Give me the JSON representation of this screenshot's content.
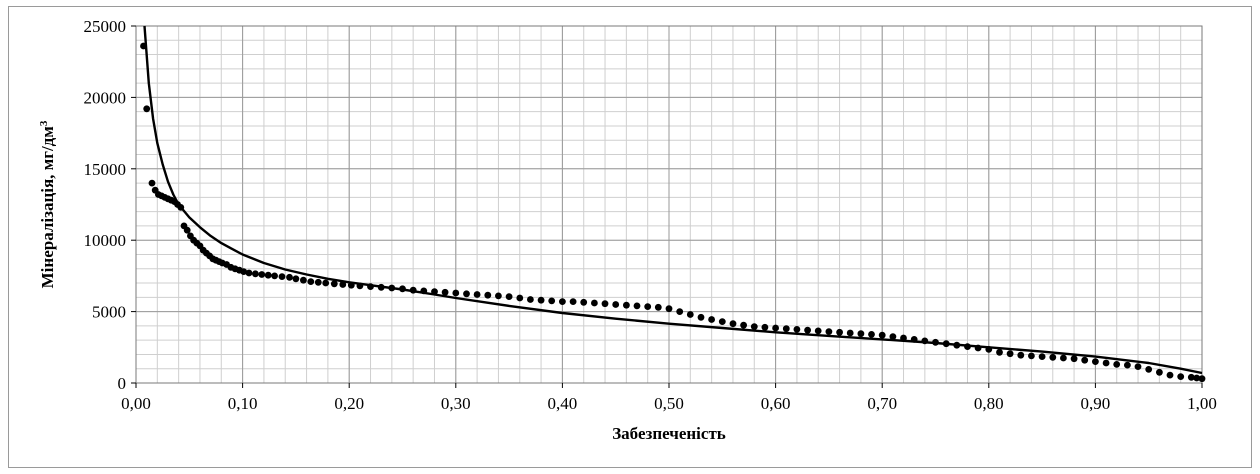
{
  "chart_data": {
    "type": "scatter",
    "title": "",
    "xlabel": "Забезпеченість",
    "ylabel": "Мінералізація, мг/дм",
    "ylabel_sup": "3",
    "xlim": [
      0,
      1
    ],
    "ylim": [
      0,
      25000
    ],
    "x_ticks": [
      {
        "v": 0.0,
        "label": "0,00"
      },
      {
        "v": 0.1,
        "label": "0,10"
      },
      {
        "v": 0.2,
        "label": "0,20"
      },
      {
        "v": 0.3,
        "label": "0,30"
      },
      {
        "v": 0.4,
        "label": "0,40"
      },
      {
        "v": 0.5,
        "label": "0,50"
      },
      {
        "v": 0.6,
        "label": "0,60"
      },
      {
        "v": 0.7,
        "label": "0,70"
      },
      {
        "v": 0.8,
        "label": "0,80"
      },
      {
        "v": 0.9,
        "label": "0,90"
      },
      {
        "v": 1.0,
        "label": "1,00"
      }
    ],
    "y_ticks": [
      {
        "v": 0,
        "label": "0"
      },
      {
        "v": 5000,
        "label": "5000"
      },
      {
        "v": 10000,
        "label": "10000"
      },
      {
        "v": 15000,
        "label": "15000"
      },
      {
        "v": 20000,
        "label": "20000"
      },
      {
        "v": 25000,
        "label": "25000"
      }
    ],
    "grid": true,
    "grid_minor": {
      "x_step": 0.02,
      "y_step": 1000
    },
    "colors": {
      "series": "#000000",
      "grid": "#bdbdbd"
    },
    "series": [
      {
        "kind": "points",
        "points": [
          [
            0.007,
            23600
          ],
          [
            0.01,
            19200
          ],
          [
            0.015,
            14000
          ],
          [
            0.018,
            13500
          ],
          [
            0.021,
            13200
          ],
          [
            0.024,
            13100
          ],
          [
            0.027,
            13000
          ],
          [
            0.03,
            12900
          ],
          [
            0.033,
            12800
          ],
          [
            0.036,
            12700
          ],
          [
            0.039,
            12500
          ],
          [
            0.042,
            12300
          ],
          [
            0.045,
            11000
          ],
          [
            0.048,
            10700
          ],
          [
            0.051,
            10300
          ],
          [
            0.054,
            10000
          ],
          [
            0.057,
            9800
          ],
          [
            0.06,
            9600
          ],
          [
            0.063,
            9300
          ],
          [
            0.066,
            9100
          ],
          [
            0.069,
            8900
          ],
          [
            0.072,
            8700
          ],
          [
            0.075,
            8600
          ],
          [
            0.078,
            8500
          ],
          [
            0.081,
            8400
          ],
          [
            0.085,
            8300
          ],
          [
            0.089,
            8100
          ],
          [
            0.093,
            8000
          ],
          [
            0.097,
            7900
          ],
          [
            0.101,
            7800
          ],
          [
            0.106,
            7700
          ],
          [
            0.112,
            7650
          ],
          [
            0.118,
            7600
          ],
          [
            0.124,
            7550
          ],
          [
            0.13,
            7500
          ],
          [
            0.137,
            7450
          ],
          [
            0.144,
            7400
          ],
          [
            0.15,
            7300
          ],
          [
            0.157,
            7200
          ],
          [
            0.164,
            7100
          ],
          [
            0.171,
            7050
          ],
          [
            0.178,
            7000
          ],
          [
            0.186,
            6950
          ],
          [
            0.194,
            6900
          ],
          [
            0.202,
            6850
          ],
          [
            0.21,
            6800
          ],
          [
            0.22,
            6750
          ],
          [
            0.23,
            6700
          ],
          [
            0.24,
            6650
          ],
          [
            0.25,
            6600
          ],
          [
            0.26,
            6500
          ],
          [
            0.27,
            6450
          ],
          [
            0.28,
            6400
          ],
          [
            0.29,
            6350
          ],
          [
            0.3,
            6300
          ],
          [
            0.31,
            6250
          ],
          [
            0.32,
            6200
          ],
          [
            0.33,
            6150
          ],
          [
            0.34,
            6100
          ],
          [
            0.35,
            6050
          ],
          [
            0.36,
            5950
          ],
          [
            0.37,
            5850
          ],
          [
            0.38,
            5800
          ],
          [
            0.39,
            5750
          ],
          [
            0.4,
            5700
          ],
          [
            0.41,
            5700
          ],
          [
            0.42,
            5650
          ],
          [
            0.43,
            5600
          ],
          [
            0.44,
            5550
          ],
          [
            0.45,
            5500
          ],
          [
            0.46,
            5450
          ],
          [
            0.47,
            5400
          ],
          [
            0.48,
            5350
          ],
          [
            0.49,
            5300
          ],
          [
            0.5,
            5200
          ],
          [
            0.51,
            5000
          ],
          [
            0.52,
            4800
          ],
          [
            0.53,
            4600
          ],
          [
            0.54,
            4450
          ],
          [
            0.55,
            4300
          ],
          [
            0.56,
            4150
          ],
          [
            0.57,
            4050
          ],
          [
            0.58,
            3950
          ],
          [
            0.59,
            3900
          ],
          [
            0.6,
            3850
          ],
          [
            0.61,
            3800
          ],
          [
            0.62,
            3750
          ],
          [
            0.63,
            3700
          ],
          [
            0.64,
            3650
          ],
          [
            0.65,
            3600
          ],
          [
            0.66,
            3550
          ],
          [
            0.67,
            3500
          ],
          [
            0.68,
            3450
          ],
          [
            0.69,
            3400
          ],
          [
            0.7,
            3350
          ],
          [
            0.71,
            3250
          ],
          [
            0.72,
            3150
          ],
          [
            0.73,
            3050
          ],
          [
            0.74,
            2950
          ],
          [
            0.75,
            2850
          ],
          [
            0.76,
            2750
          ],
          [
            0.77,
            2650
          ],
          [
            0.78,
            2550
          ],
          [
            0.79,
            2450
          ],
          [
            0.8,
            2350
          ],
          [
            0.81,
            2150
          ],
          [
            0.82,
            2050
          ],
          [
            0.83,
            1950
          ],
          [
            0.84,
            1900
          ],
          [
            0.85,
            1850
          ],
          [
            0.86,
            1800
          ],
          [
            0.87,
            1750
          ],
          [
            0.88,
            1700
          ],
          [
            0.89,
            1600
          ],
          [
            0.9,
            1500
          ],
          [
            0.91,
            1400
          ],
          [
            0.92,
            1300
          ],
          [
            0.93,
            1250
          ],
          [
            0.94,
            1150
          ],
          [
            0.95,
            950
          ],
          [
            0.96,
            750
          ],
          [
            0.97,
            550
          ],
          [
            0.98,
            450
          ],
          [
            0.99,
            400
          ],
          [
            0.995,
            350
          ],
          [
            1.0,
            300
          ]
        ]
      },
      {
        "kind": "curve",
        "points": [
          [
            0.008,
            25000
          ],
          [
            0.012,
            21000
          ],
          [
            0.016,
            18500
          ],
          [
            0.02,
            16800
          ],
          [
            0.025,
            15300
          ],
          [
            0.03,
            14100
          ],
          [
            0.035,
            13200
          ],
          [
            0.04,
            12500
          ],
          [
            0.05,
            11600
          ],
          [
            0.06,
            10900
          ],
          [
            0.07,
            10300
          ],
          [
            0.08,
            9800
          ],
          [
            0.09,
            9400
          ],
          [
            0.1,
            9000
          ],
          [
            0.12,
            8400
          ],
          [
            0.14,
            7950
          ],
          [
            0.16,
            7600
          ],
          [
            0.18,
            7300
          ],
          [
            0.2,
            7050
          ],
          [
            0.22,
            6850
          ],
          [
            0.25,
            6550
          ],
          [
            0.28,
            6200
          ],
          [
            0.3,
            5950
          ],
          [
            0.35,
            5400
          ],
          [
            0.4,
            4900
          ],
          [
            0.45,
            4500
          ],
          [
            0.5,
            4150
          ],
          [
            0.55,
            3850
          ],
          [
            0.6,
            3550
          ],
          [
            0.65,
            3300
          ],
          [
            0.7,
            3050
          ],
          [
            0.75,
            2800
          ],
          [
            0.8,
            2500
          ],
          [
            0.85,
            2200
          ],
          [
            0.9,
            1850
          ],
          [
            0.95,
            1400
          ],
          [
            0.98,
            1000
          ],
          [
            1.0,
            700
          ]
        ]
      }
    ]
  }
}
